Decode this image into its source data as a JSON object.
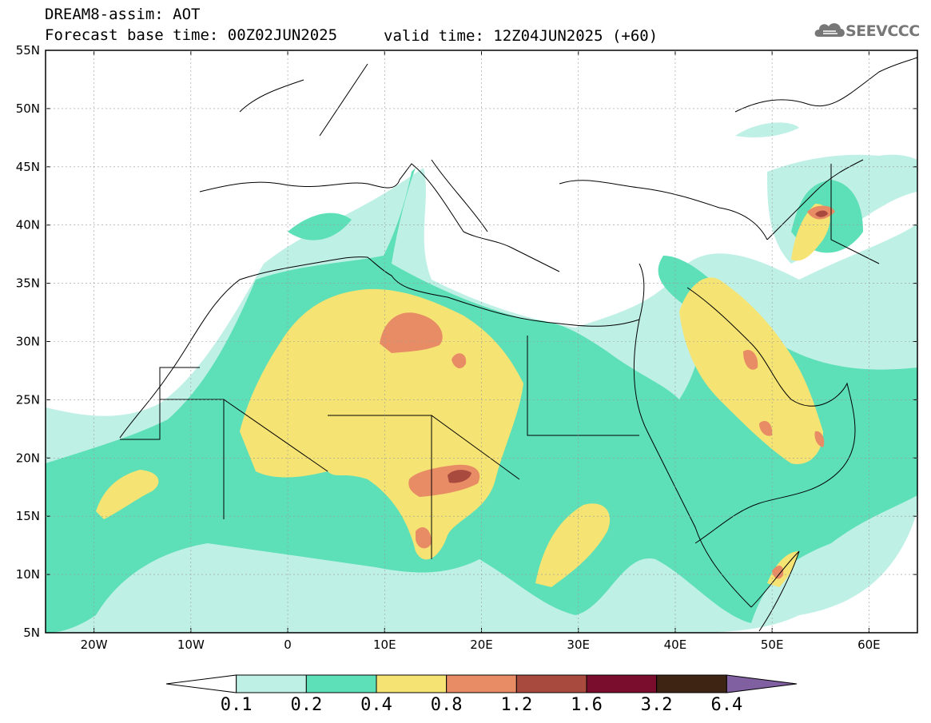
{
  "title": {
    "line1": "DREAM8-assim: AOT",
    "line2": "Forecast base time: 00Z02JUN2025",
    "valid": "valid time: 12Z04JUN2025 (+60)"
  },
  "logo": {
    "text": "SEEVCCC",
    "icon": "cloud-logo-icon"
  },
  "map": {
    "lon_ticks": [
      "20W",
      "10W",
      "0",
      "10E",
      "20E",
      "30E",
      "40E",
      "50E",
      "60E"
    ],
    "lat_ticks": [
      "55N",
      "50N",
      "45N",
      "40N",
      "35N",
      "30N",
      "25N",
      "20N",
      "15N",
      "10N",
      "5N"
    ],
    "lon_range": [
      -25,
      65
    ],
    "lat_range": [
      5,
      55
    ]
  },
  "colorbar": {
    "labels": [
      "0.1",
      "0.2",
      "0.4",
      "0.8",
      "1.2",
      "1.6",
      "3.2",
      "6.4"
    ],
    "colors": [
      "#ffffff",
      "#bff0e6",
      "#5de0b8",
      "#f5e373",
      "#e88c66",
      "#a84a3e",
      "#7a0d2d",
      "#3d2413",
      "#8060a0"
    ]
  },
  "legend_colors": {
    "c01": "#bff0e6",
    "c02": "#5de0b8",
    "c04": "#f5e373",
    "c08": "#e88c66",
    "c12": "#a84a3e",
    "c16": "#7a0d2d"
  }
}
